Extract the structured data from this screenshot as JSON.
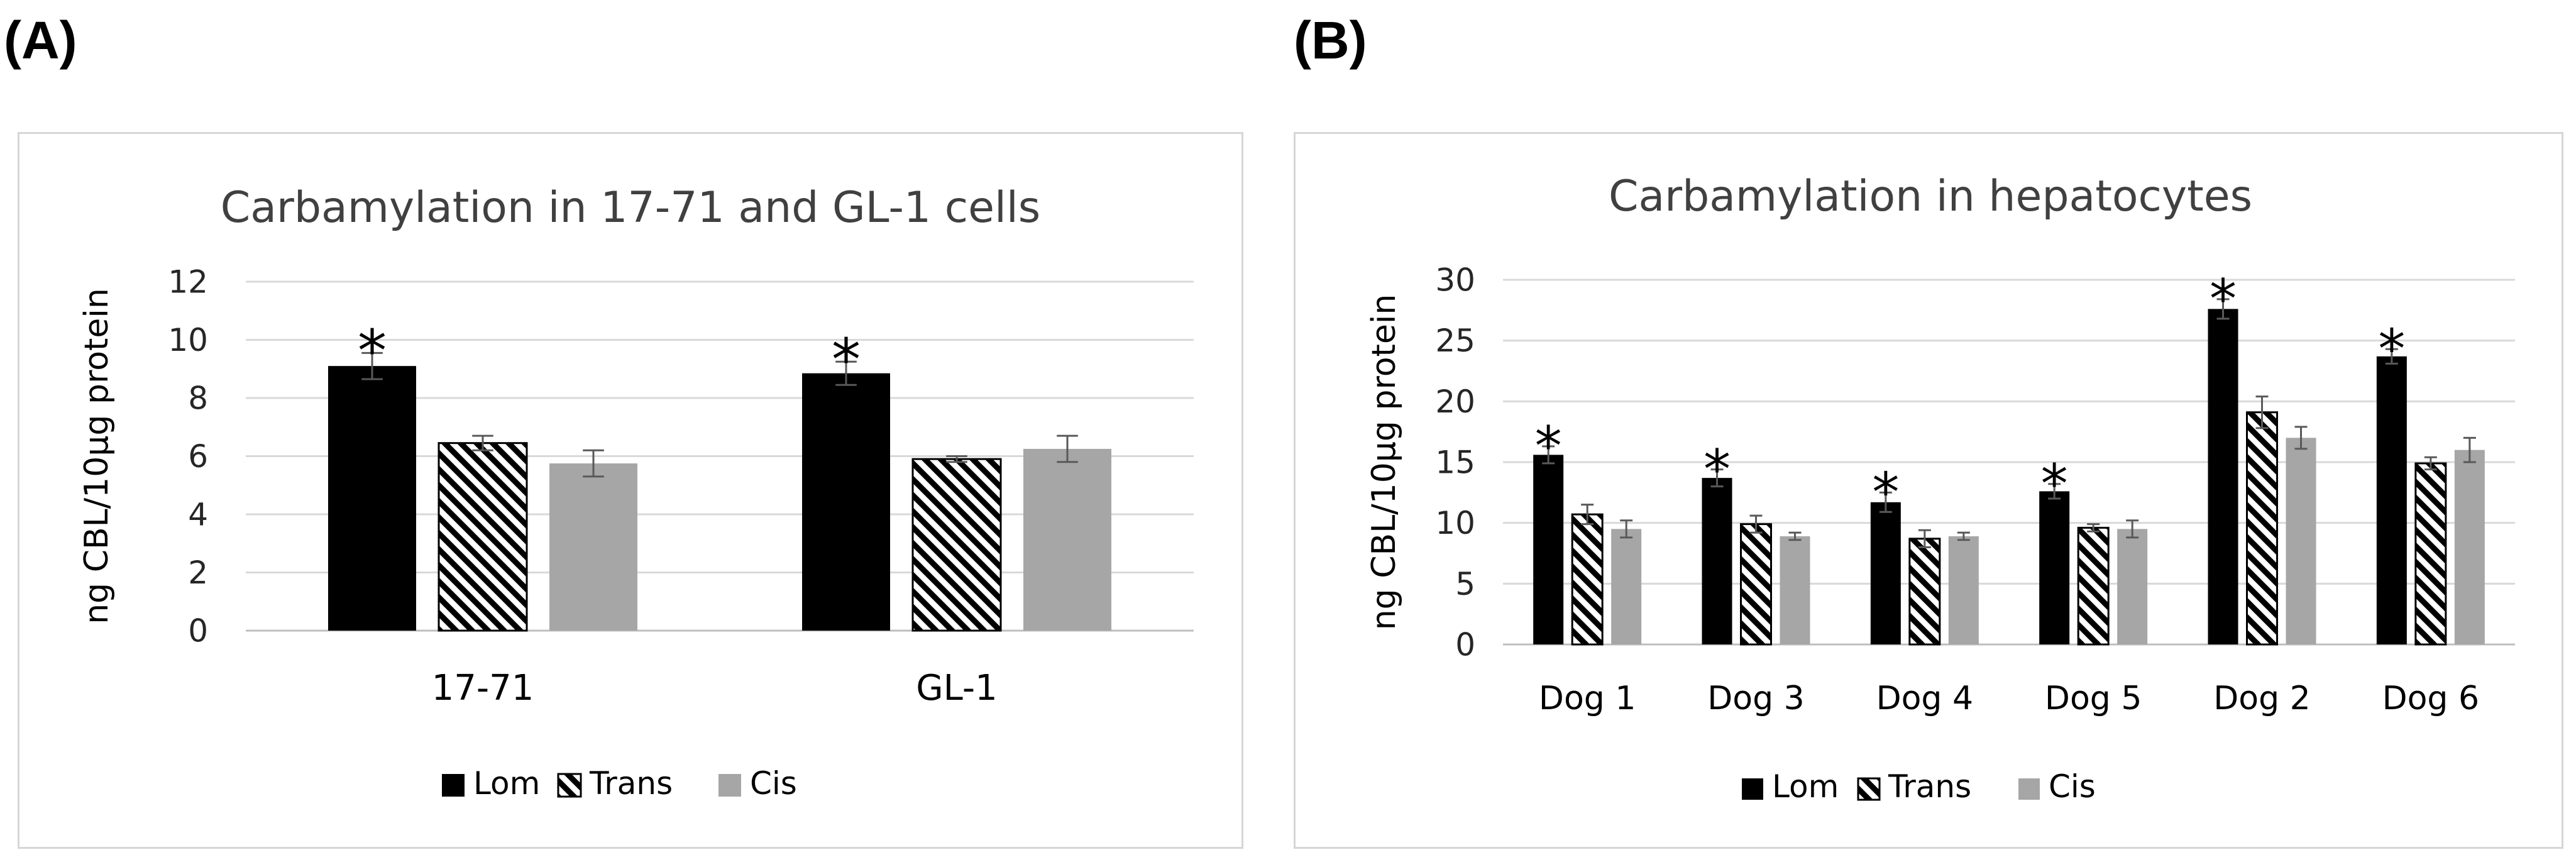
{
  "panels": {
    "a": {
      "letter": "(A)"
    },
    "b": {
      "letter": "(B)"
    }
  },
  "colors": {
    "lom": "#000000",
    "trans_bg": "#ffffff",
    "trans_line": "#000000",
    "cis": "#a6a6a6",
    "grid": "#d9d9d9",
    "axis": "#bfbfbf",
    "error": "#595959"
  },
  "chart_data": [
    {
      "type": "bar",
      "title": "Carbamylation in 17-71 and GL-1 cells",
      "xlabel": "",
      "ylabel": "ng CBL/10µg protein",
      "ylim": [
        0,
        12
      ],
      "yticks": [
        "0",
        "2",
        "4",
        "6",
        "8",
        "10",
        "12"
      ],
      "categories": [
        "17-71",
        "GL-1"
      ],
      "series": [
        {
          "name": "Lom",
          "values": [
            9.1,
            8.85
          ],
          "errors": [
            0.45,
            0.4
          ]
        },
        {
          "name": "Trans",
          "values": [
            6.45,
            5.9
          ],
          "errors": [
            0.25,
            0.1
          ]
        },
        {
          "name": "Cis",
          "values": [
            5.75,
            6.25
          ],
          "errors": [
            0.45,
            0.45
          ]
        }
      ],
      "annotations": [
        {
          "series": "Lom",
          "category": "17-71",
          "text": "*"
        },
        {
          "series": "Lom",
          "category": "GL-1",
          "text": "*"
        }
      ],
      "legend": {
        "position": "bottom",
        "labels": [
          "Lom",
          "Trans",
          "Cis"
        ]
      }
    },
    {
      "type": "bar",
      "title": "Carbamylation in hepatocytes",
      "xlabel": "",
      "ylabel": "ng CBL/10µg protein",
      "ylim": [
        0,
        30
      ],
      "yticks": [
        "0",
        "5",
        "10",
        "15",
        "20",
        "25",
        "30"
      ],
      "categories": [
        "Dog 1",
        "Dog 3",
        "Dog 4",
        "Dog 5",
        "Dog 2",
        "Dog 6"
      ],
      "series": [
        {
          "name": "Lom",
          "values": [
            15.6,
            13.7,
            11.7,
            12.6,
            27.6,
            23.7
          ],
          "errors": [
            0.7,
            0.7,
            0.8,
            0.6,
            0.8,
            0.6
          ]
        },
        {
          "name": "Trans",
          "values": [
            10.7,
            9.9,
            8.7,
            9.6,
            19.1,
            14.9
          ],
          "errors": [
            0.8,
            0.7,
            0.7,
            0.3,
            1.3,
            0.5
          ]
        },
        {
          "name": "Cis",
          "values": [
            9.5,
            8.9,
            8.9,
            9.5,
            17.0,
            16.0
          ],
          "errors": [
            0.7,
            0.3,
            0.3,
            0.7,
            0.9,
            1.0
          ]
        }
      ],
      "annotations": [
        {
          "series": "Lom",
          "category": "Dog 1",
          "text": "*"
        },
        {
          "series": "Lom",
          "category": "Dog 3",
          "text": "*"
        },
        {
          "series": "Lom",
          "category": "Dog 4",
          "text": "*"
        },
        {
          "series": "Lom",
          "category": "Dog 5",
          "text": "*"
        },
        {
          "series": "Lom",
          "category": "Dog 2",
          "text": "*"
        },
        {
          "series": "Lom",
          "category": "Dog 6",
          "text": "*"
        }
      ],
      "legend": {
        "position": "bottom",
        "labels": [
          "Lom",
          "Trans",
          "Cis"
        ]
      }
    }
  ]
}
